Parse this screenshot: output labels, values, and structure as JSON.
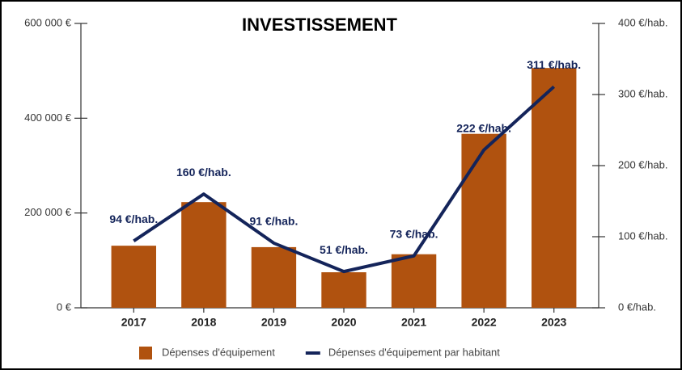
{
  "chart_data": {
    "type": "bar",
    "title": "INVESTISSEMENT",
    "categories": [
      "2017",
      "2018",
      "2019",
      "2020",
      "2021",
      "2022",
      "2023"
    ],
    "series": [
      {
        "name": "Dépenses d'équipement",
        "type": "bar",
        "color": "#b0520f",
        "values": [
          131000,
          223000,
          128000,
          75000,
          113000,
          367000,
          506000
        ]
      },
      {
        "name": "Dépenses d'équipement par habitant",
        "type": "line",
        "axis": "y2",
        "color": "#14245a",
        "values": [
          94,
          160,
          91,
          51,
          73,
          222,
          311
        ],
        "value_labels": [
          "94 €/hab.",
          "160 €/hab.",
          "91 €/hab.",
          "51 €/hab.",
          "73 €/hab.",
          "222 €/hab.",
          "311 €/hab."
        ]
      }
    ],
    "ylim": [
      0,
      600000
    ],
    "yticks": [
      {
        "value": 0,
        "label": "0 €"
      },
      {
        "value": 200000,
        "label": "200 000 €"
      },
      {
        "value": 400000,
        "label": "400 000 €"
      },
      {
        "value": 600000,
        "label": "600 000 €"
      }
    ],
    "y2lim": [
      0,
      400
    ],
    "y2ticks": [
      {
        "value": 0,
        "label": "0 €/hab."
      },
      {
        "value": 100,
        "label": "100 €/hab."
      },
      {
        "value": 200,
        "label": "200 €/hab."
      },
      {
        "value": 300,
        "label": "300 €/hab."
      },
      {
        "value": 400,
        "label": "400 €/hab."
      }
    ],
    "legend": "bottom",
    "grid": false
  }
}
